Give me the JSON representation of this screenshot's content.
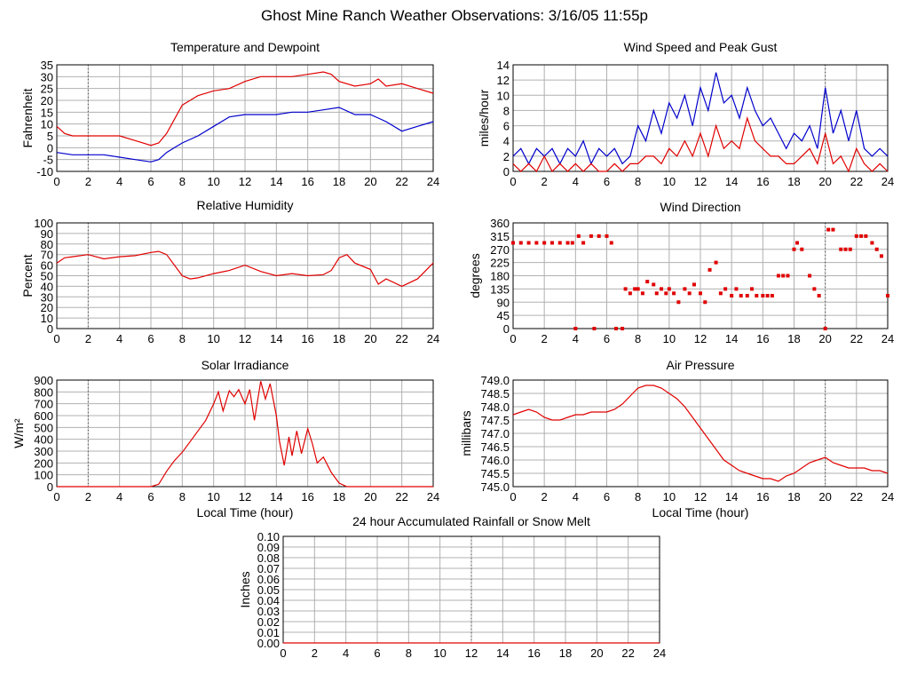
{
  "title": "Ghost Mine Ranch Weather Observations: 3/16/05 11:55p",
  "colors": {
    "grid": "#b0b0b0",
    "red": "#e00000",
    "blue": "#0000cc",
    "midline": "#000000"
  },
  "chart_data": [
    {
      "id": "temp",
      "type": "line",
      "title": "Temperature and Dewpoint",
      "xlabel": "",
      "ylabel": "Fahrenheit",
      "xlim": [
        0,
        24
      ],
      "ylim": [
        -10,
        35
      ],
      "xticks": [
        "0",
        "2",
        "4",
        "6",
        "8",
        "10",
        "12",
        "14",
        "16",
        "18",
        "20",
        "22",
        "24"
      ],
      "yticks": [
        "-10",
        "-5",
        "0",
        "5",
        "10",
        "15",
        "20",
        "25",
        "30",
        "35"
      ],
      "series": [
        {
          "name": "",
          "color": "red",
          "x": [
            0,
            0.5,
            1,
            2,
            3,
            4,
            5,
            6,
            6.5,
            7,
            7.5,
            8,
            8.5,
            9,
            10,
            11,
            12,
            13,
            14,
            15,
            16,
            17,
            17.5,
            18,
            19,
            20,
            20.5,
            21,
            22,
            23,
            24
          ],
          "y": [
            9,
            6,
            5,
            5,
            5,
            5,
            3,
            1,
            2,
            6,
            12,
            18,
            20,
            22,
            24,
            25,
            28,
            30,
            30,
            30,
            31,
            32,
            31,
            28,
            26,
            27,
            29,
            26,
            27,
            25,
            23
          ]
        },
        {
          "name": "",
          "color": "blue",
          "x": [
            0,
            1,
            2,
            3,
            4,
            5,
            6,
            6.5,
            7,
            7.5,
            8,
            9,
            10,
            11,
            12,
            13,
            14,
            15,
            16,
            17,
            18,
            19,
            20,
            21,
            22,
            23,
            24
          ],
          "y": [
            -2,
            -3,
            -3,
            -3,
            -4,
            -5,
            -6,
            -5,
            -2,
            0,
            2,
            5,
            9,
            13,
            14,
            14,
            14,
            15,
            15,
            16,
            17,
            14,
            14,
            11,
            7,
            9,
            11
          ]
        }
      ]
    },
    {
      "id": "wind",
      "type": "line",
      "title": "Wind Speed and Peak Gust",
      "xlabel": "",
      "ylabel": "miles/hour",
      "xlim": [
        0,
        24
      ],
      "ylim": [
        0,
        14
      ],
      "xticks": [
        "0",
        "2",
        "4",
        "6",
        "8",
        "10",
        "12",
        "14",
        "16",
        "18",
        "20",
        "22",
        "24"
      ],
      "yticks": [
        "0",
        "2",
        "4",
        "6",
        "8",
        "10",
        "12",
        "14"
      ],
      "series": [
        {
          "name": "",
          "color": "blue",
          "x": [
            0,
            0.5,
            1,
            1.5,
            2,
            2.5,
            3,
            3.5,
            4,
            4.5,
            5,
            5.5,
            6,
            6.5,
            7,
            7.5,
            8,
            8.5,
            9,
            9.5,
            10,
            10.5,
            11,
            11.5,
            12,
            12.5,
            13,
            13.5,
            14,
            14.5,
            15,
            15.5,
            16,
            16.5,
            17,
            17.5,
            18,
            18.5,
            19,
            19.5,
            20,
            20.5,
            21,
            21.5,
            22,
            22.5,
            23,
            23.5,
            24
          ],
          "y": [
            2,
            3,
            1,
            3,
            2,
            3,
            1,
            3,
            2,
            4,
            1,
            3,
            2,
            3,
            1,
            2,
            6,
            4,
            8,
            5,
            9,
            7,
            10,
            6,
            11,
            8,
            13,
            9,
            10,
            7,
            11,
            8,
            6,
            7,
            5,
            3,
            5,
            4,
            6,
            3,
            11,
            5,
            8,
            4,
            8,
            3,
            2,
            3,
            2
          ]
        },
        {
          "name": "",
          "color": "red",
          "x": [
            0,
            0.5,
            1,
            1.5,
            2,
            2.5,
            3,
            3.5,
            4,
            4.5,
            5,
            5.5,
            6,
            6.5,
            7,
            7.5,
            8,
            8.5,
            9,
            9.5,
            10,
            10.5,
            11,
            11.5,
            12,
            12.5,
            13,
            13.5,
            14,
            14.5,
            15,
            15.5,
            16,
            16.5,
            17,
            17.5,
            18,
            18.5,
            19,
            19.5,
            20,
            20.5,
            21,
            21.5,
            22,
            22.5,
            23,
            23.5,
            24
          ],
          "y": [
            1,
            0,
            1,
            0,
            2,
            0,
            1,
            0,
            1,
            0,
            1,
            0,
            0,
            1,
            0,
            1,
            1,
            2,
            2,
            1,
            3,
            2,
            4,
            2,
            5,
            2,
            6,
            3,
            4,
            3,
            7,
            4,
            3,
            2,
            2,
            1,
            1,
            2,
            3,
            1,
            5,
            1,
            2,
            0,
            3,
            1,
            0,
            1,
            0
          ]
        }
      ]
    },
    {
      "id": "rh",
      "type": "line",
      "title": "Relative Humidity",
      "xlabel": "",
      "ylabel": "Percent",
      "xlim": [
        0,
        24
      ],
      "ylim": [
        0,
        100
      ],
      "xticks": [
        "0",
        "2",
        "4",
        "6",
        "8",
        "10",
        "12",
        "14",
        "16",
        "18",
        "20",
        "22",
        "24"
      ],
      "yticks": [
        "0",
        "10",
        "20",
        "30",
        "40",
        "50",
        "60",
        "70",
        "80",
        "90",
        "100"
      ],
      "series": [
        {
          "name": "",
          "color": "red",
          "x": [
            0,
            0.5,
            1,
            2,
            3,
            4,
            5,
            6,
            6.5,
            7,
            7.5,
            8,
            8.5,
            9,
            10,
            11,
            12,
            13,
            14,
            15,
            16,
            17,
            17.5,
            18,
            18.5,
            19,
            20,
            20.5,
            21,
            22,
            23,
            24
          ],
          "y": [
            62,
            67,
            68,
            70,
            66,
            68,
            69,
            72,
            73,
            70,
            60,
            50,
            47,
            48,
            52,
            55,
            60,
            54,
            50,
            52,
            50,
            51,
            55,
            67,
            70,
            62,
            56,
            42,
            47,
            40,
            47,
            62
          ]
        }
      ]
    },
    {
      "id": "wdir",
      "type": "scatter",
      "title": "Wind Direction",
      "xlabel": "",
      "ylabel": "degrees",
      "xlim": [
        0,
        24
      ],
      "ylim": [
        0,
        360
      ],
      "xticks": [
        "0",
        "2",
        "4",
        "6",
        "8",
        "10",
        "12",
        "14",
        "16",
        "18",
        "20",
        "22",
        "24"
      ],
      "yticks": [
        "0",
        "45",
        "90",
        "135",
        "180",
        "225",
        "270",
        "315",
        "360"
      ],
      "series": [
        {
          "name": "",
          "color": "red",
          "x": [
            0,
            0.5,
            1,
            1.5,
            2,
            2.5,
            3,
            3.5,
            3.8,
            4,
            4.2,
            4.5,
            5,
            5.2,
            5.5,
            6,
            6.3,
            6.6,
            7,
            7.2,
            7.5,
            7.8,
            8,
            8.3,
            8.6,
            9,
            9.2,
            9.5,
            9.8,
            10,
            10.3,
            10.6,
            11,
            11.3,
            11.6,
            12,
            12.3,
            12.6,
            13,
            13.3,
            13.6,
            14,
            14.3,
            14.6,
            15,
            15.3,
            15.6,
            16,
            16.3,
            16.6,
            17,
            17.3,
            17.6,
            18,
            18.2,
            18.5,
            19,
            19.3,
            19.6,
            20,
            20.2,
            20.5,
            21,
            21.3,
            21.6,
            22,
            22.3,
            22.6,
            23,
            23.3,
            23.6,
            24
          ],
          "y": [
            292,
            292,
            292,
            292,
            292,
            292,
            292,
            292,
            292,
            0,
            315,
            292,
            315,
            0,
            315,
            315,
            292,
            0,
            0,
            135,
            120,
            135,
            135,
            120,
            160,
            150,
            120,
            135,
            120,
            135,
            120,
            90,
            135,
            120,
            150,
            120,
            90,
            200,
            225,
            120,
            135,
            112,
            135,
            112,
            112,
            135,
            112,
            112,
            112,
            112,
            180,
            180,
            180,
            270,
            292,
            270,
            180,
            135,
            112,
            0,
            337,
            337,
            270,
            270,
            270,
            315,
            315,
            315,
            292,
            270,
            247,
            112
          ]
        }
      ]
    },
    {
      "id": "solar",
      "type": "line",
      "title": "Solar Irradiance",
      "xlabel": "Local Time (hour)",
      "ylabel": "W/m²",
      "xlim": [
        0,
        24
      ],
      "ylim": [
        0,
        900
      ],
      "xticks": [
        "0",
        "2",
        "4",
        "6",
        "8",
        "10",
        "12",
        "14",
        "16",
        "18",
        "20",
        "22",
        "24"
      ],
      "yticks": [
        "0",
        "100",
        "200",
        "300",
        "400",
        "500",
        "600",
        "700",
        "800",
        "900"
      ],
      "series": [
        {
          "name": "",
          "color": "red",
          "x": [
            0,
            6,
            6.5,
            7,
            7.5,
            8,
            8.5,
            9,
            9.5,
            10,
            10.3,
            10.6,
            11,
            11.3,
            11.6,
            12,
            12.3,
            12.6,
            13,
            13.3,
            13.6,
            14,
            14.2,
            14.5,
            14.8,
            15,
            15.3,
            15.6,
            16,
            16.3,
            16.6,
            17,
            17.5,
            18,
            18.5,
            24
          ],
          "y": [
            0,
            0,
            20,
            130,
            220,
            290,
            380,
            470,
            560,
            700,
            800,
            640,
            810,
            760,
            820,
            700,
            820,
            560,
            890,
            740,
            870,
            600,
            380,
            180,
            420,
            260,
            470,
            280,
            490,
            360,
            200,
            250,
            120,
            30,
            0,
            0
          ]
        }
      ]
    },
    {
      "id": "pressure",
      "type": "line",
      "title": "Air Pressure",
      "xlabel": "Local Time (hour)",
      "ylabel": "millibars",
      "xlim": [
        0,
        24
      ],
      "ylim": [
        745.0,
        749.0
      ],
      "xticks": [
        "0",
        "2",
        "4",
        "6",
        "8",
        "10",
        "12",
        "14",
        "16",
        "18",
        "20",
        "22",
        "24"
      ],
      "yticks": [
        "745.0",
        "745.5",
        "746.0",
        "746.5",
        "747.0",
        "747.5",
        "748.0",
        "748.5",
        "749.0"
      ],
      "series": [
        {
          "name": "",
          "color": "red",
          "x": [
            0,
            0.5,
            1,
            1.5,
            2,
            2.5,
            3,
            3.5,
            4,
            4.5,
            5,
            5.5,
            6,
            6.5,
            7,
            7.5,
            8,
            8.5,
            9,
            9.5,
            10,
            10.5,
            11,
            11.5,
            12,
            12.5,
            13,
            13.5,
            14,
            14.5,
            15,
            15.5,
            16,
            16.5,
            17,
            17.5,
            18,
            18.5,
            19,
            19.5,
            20,
            20.5,
            21,
            21.5,
            22,
            22.5,
            23,
            23.5,
            24
          ],
          "y": [
            747.7,
            747.8,
            747.9,
            747.8,
            747.6,
            747.5,
            747.5,
            747.6,
            747.7,
            747.7,
            747.8,
            747.8,
            747.8,
            747.9,
            748.1,
            748.4,
            748.7,
            748.8,
            748.8,
            748.7,
            748.5,
            748.3,
            748.0,
            747.6,
            747.2,
            746.8,
            746.4,
            746.0,
            745.8,
            745.6,
            745.5,
            745.4,
            745.3,
            745.3,
            745.2,
            745.4,
            745.5,
            745.7,
            745.9,
            746.0,
            746.1,
            745.9,
            745.8,
            745.7,
            745.7,
            745.7,
            745.6,
            745.6,
            745.5
          ]
        }
      ]
    },
    {
      "id": "rain",
      "type": "line",
      "title": "24 hour Accumulated Rainfall or Snow Melt",
      "xlabel": "",
      "ylabel": "Inches",
      "xlim": [
        0,
        24
      ],
      "ylim": [
        0,
        0.1
      ],
      "xticks": [
        "0",
        "2",
        "4",
        "6",
        "8",
        "10",
        "12",
        "14",
        "16",
        "18",
        "20",
        "22",
        "24"
      ],
      "yticks": [
        "0.00",
        "0.01",
        "0.02",
        "0.03",
        "0.04",
        "0.05",
        "0.06",
        "0.07",
        "0.08",
        "0.09",
        "0.10"
      ],
      "series": [
        {
          "name": "",
          "color": "red",
          "x": [
            0,
            24
          ],
          "y": [
            0,
            0
          ]
        }
      ]
    }
  ]
}
